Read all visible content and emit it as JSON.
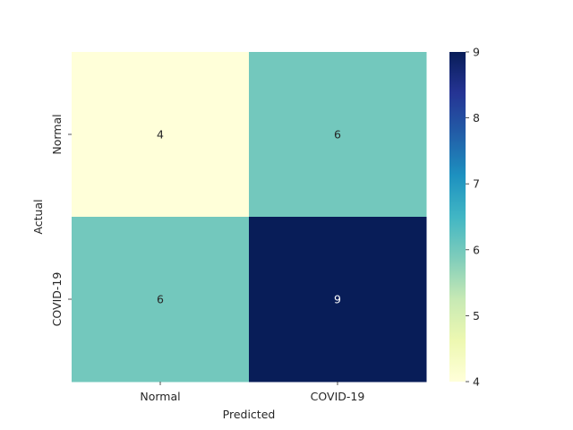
{
  "chart_data": {
    "type": "heatmap",
    "title": "",
    "xlabel": "Predicted",
    "ylabel": "Actual",
    "x_categories": [
      "Normal",
      "COVID-19"
    ],
    "y_categories": [
      "Normal",
      "COVID-19"
    ],
    "values": [
      [
        4,
        6
      ],
      [
        6,
        9
      ]
    ],
    "colormap": "YlGnBu",
    "colorbar": {
      "min": 4,
      "max": 9,
      "ticks": [
        4,
        5,
        6,
        7,
        8,
        9
      ]
    },
    "colors": {
      "min": "#ffffd9",
      "mid": "#73c8bd",
      "max": "#081d58",
      "annotation_dark_cell": "#ffffff",
      "annotation_light_cell": "#262626"
    }
  }
}
